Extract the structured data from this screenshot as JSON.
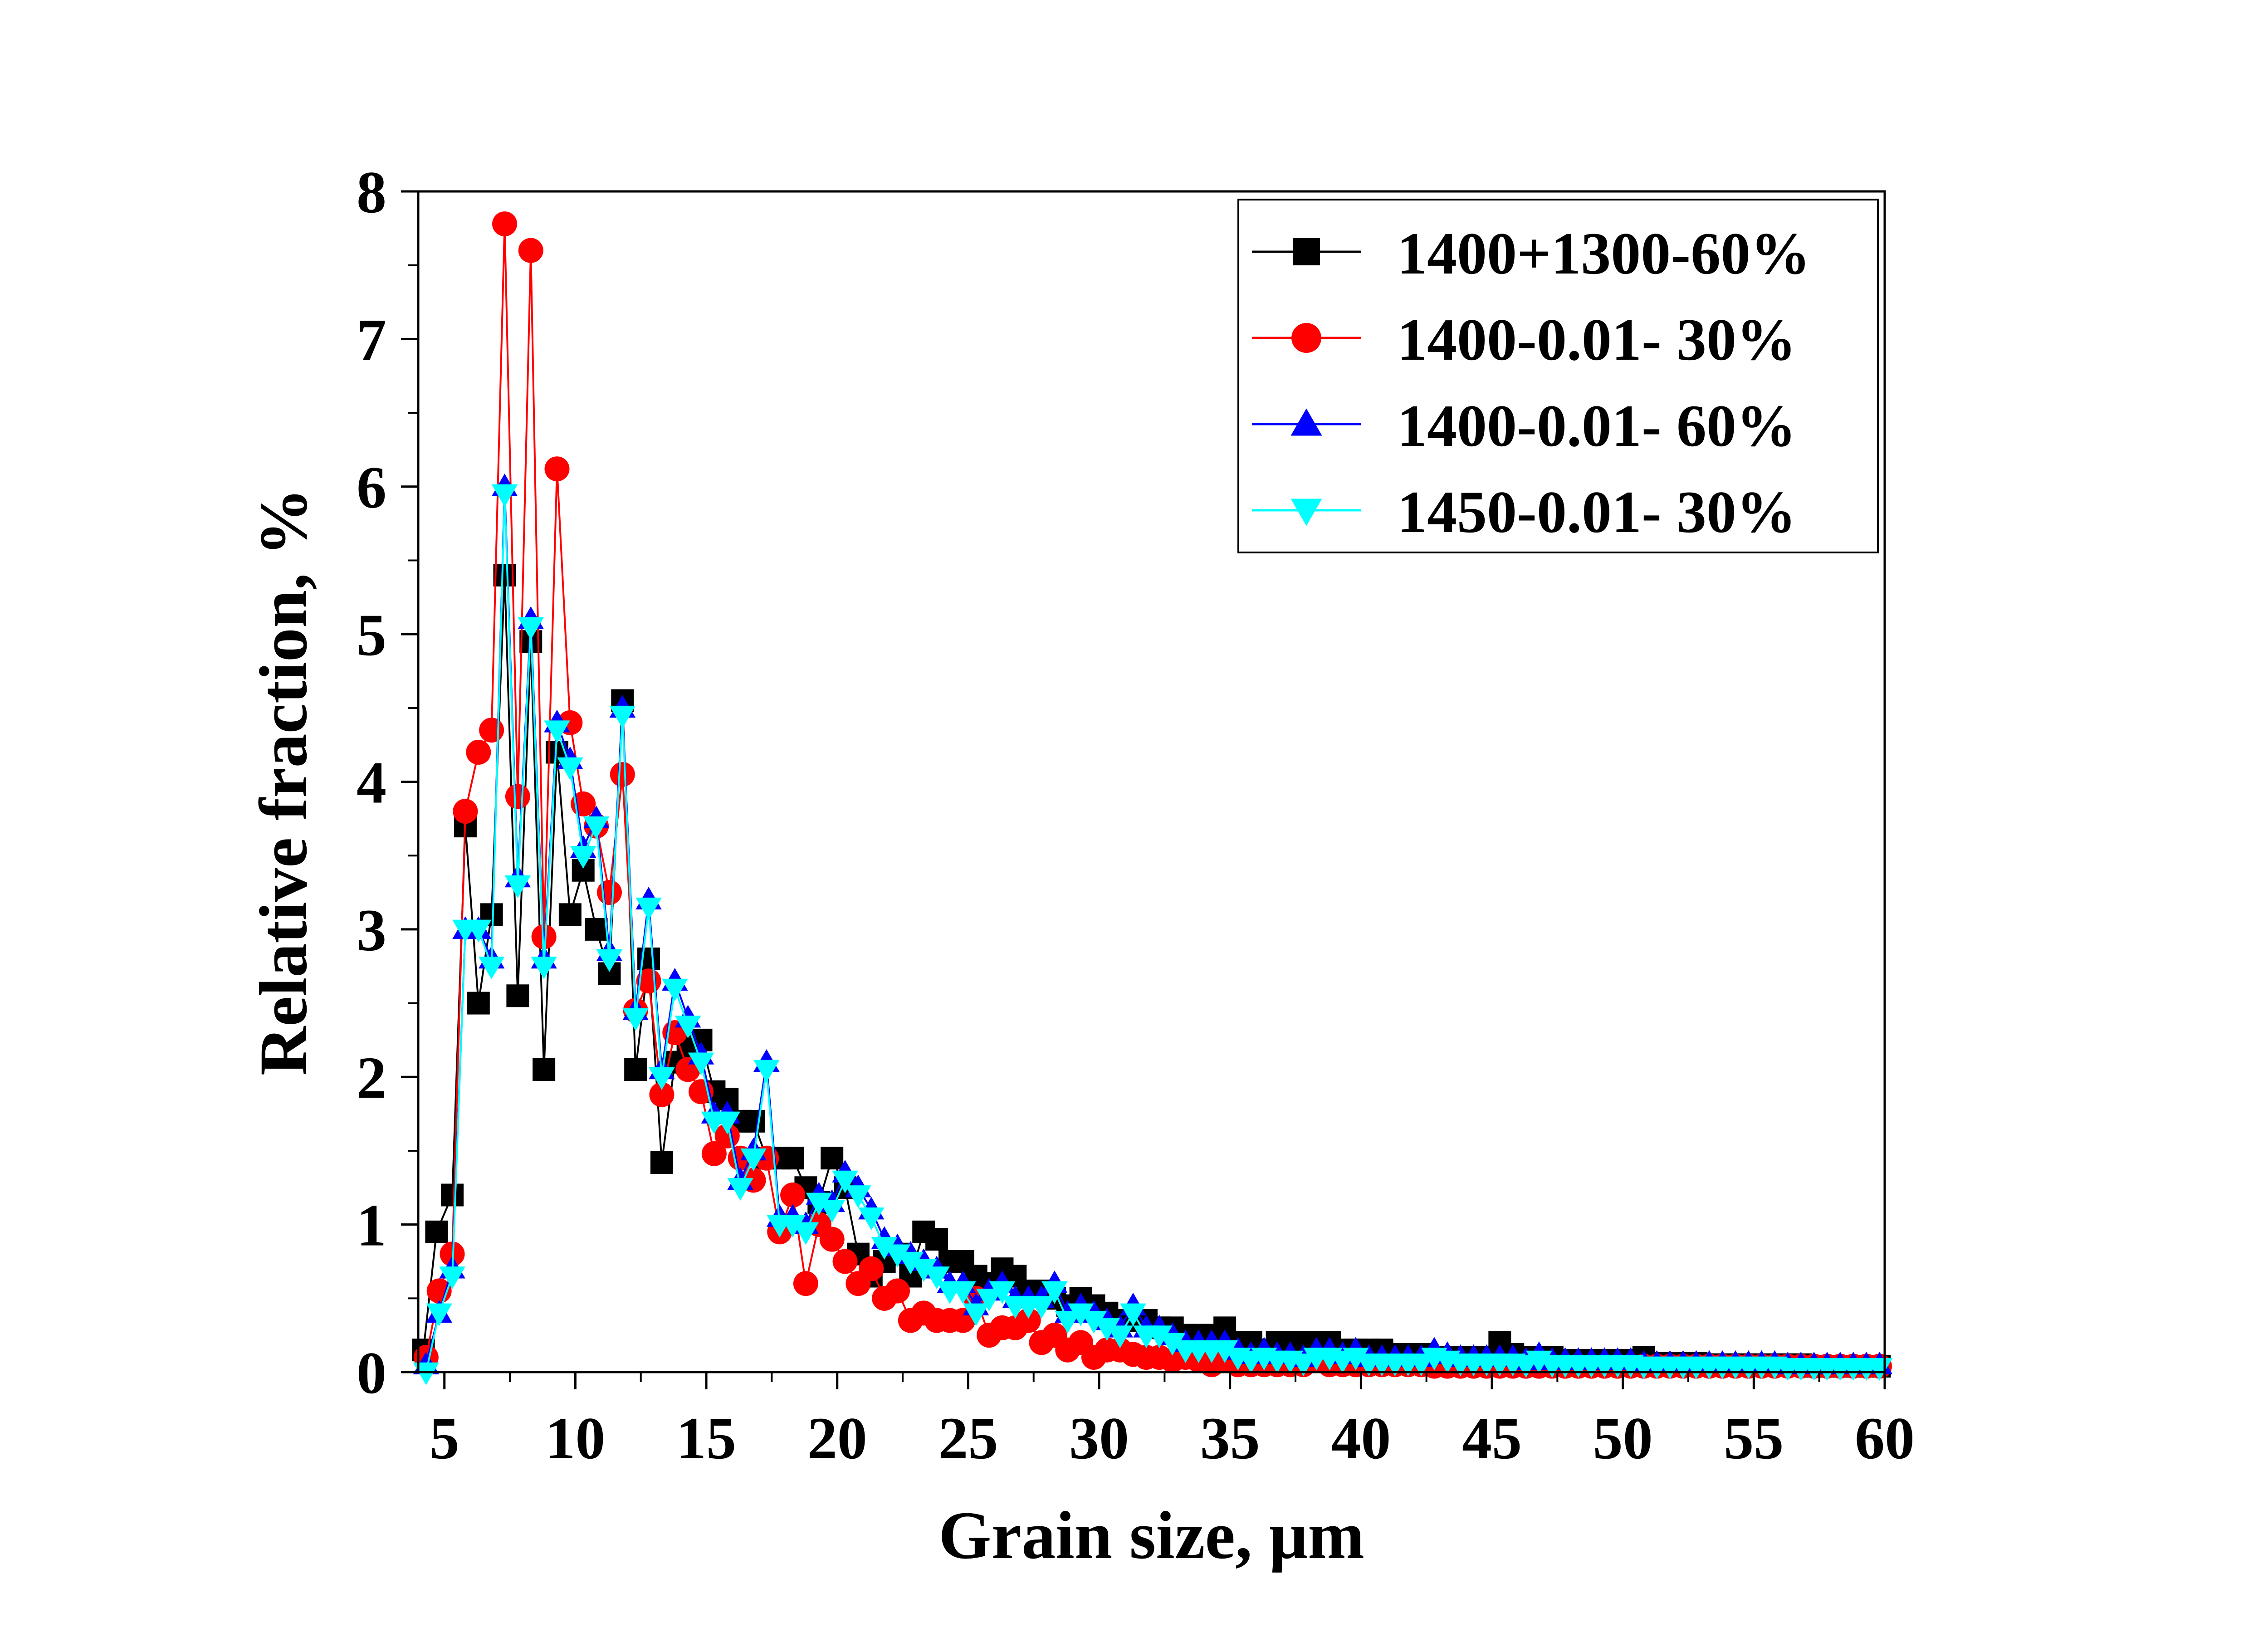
{
  "chart_data": {
    "type": "line",
    "xlabel": "Grain size, μm",
    "ylabel": "Relative fraction, %",
    "xlim": [
      4,
      60
    ],
    "ylim": [
      0,
      8
    ],
    "x_ticks": [
      5,
      10,
      15,
      20,
      25,
      30,
      35,
      40,
      45,
      50,
      55,
      60
    ],
    "x_tick_labels": [
      "5",
      "10",
      "15",
      "20",
      "25",
      "30",
      "35",
      "40",
      "45",
      "50",
      "55",
      "60"
    ],
    "y_ticks": [
      0,
      1,
      2,
      3,
      4,
      5,
      6,
      7,
      8
    ],
    "y_tick_labels": [
      "0",
      "1",
      "2",
      "3",
      "4",
      "5",
      "6",
      "7",
      "8"
    ],
    "grid": false,
    "legend_position": "top-right",
    "series": [
      {
        "name": "1400+1300-60%",
        "color": "#000000",
        "marker": "square",
        "x": [
          4.2,
          4.7,
          5.3,
          5.8,
          6.3,
          6.8,
          7.3,
          7.8,
          8.3,
          8.8,
          9.3,
          9.8,
          10.3,
          10.8,
          11.3,
          11.8,
          12.3,
          12.8,
          13.3,
          13.8,
          14.3,
          14.8,
          15.3,
          15.8,
          16.3,
          16.8,
          17.3,
          17.8,
          18.3,
          18.8,
          19.3,
          19.8,
          20.3,
          20.8,
          21.3,
          21.8,
          22.3,
          22.8,
          23.3,
          23.8,
          24.3,
          24.8,
          25.3,
          25.8,
          26.3,
          26.8,
          27.3,
          27.8,
          28.3,
          28.8,
          29.3,
          29.8,
          30.3,
          30.8,
          31.3,
          31.8,
          32.3,
          32.8,
          33.3,
          33.8,
          34.3,
          34.8,
          35.3,
          35.8,
          36.3,
          36.8,
          37.3,
          37.8,
          38.3,
          38.8,
          39.3,
          39.8,
          40.3,
          40.8,
          41.3,
          41.8,
          42.3,
          42.8,
          43.3,
          43.8,
          44.3,
          44.8,
          45.3,
          45.8,
          46.3,
          46.8,
          47.3,
          47.8,
          48.3,
          48.8,
          49.3,
          49.8,
          50.3,
          50.8,
          51.3,
          51.8,
          52.3,
          52.8,
          53.3,
          53.8,
          54.3,
          54.8,
          55.3,
          55.8,
          56.3,
          56.8,
          57.3,
          57.8,
          58.3,
          58.8,
          59.3,
          59.8
        ],
        "y": [
          0.15,
          0.95,
          1.2,
          3.7,
          2.5,
          3.1,
          5.4,
          2.55,
          4.95,
          2.05,
          4.2,
          3.1,
          3.4,
          3.0,
          2.7,
          4.55,
          2.05,
          2.8,
          1.42,
          2.1,
          2.2,
          2.25,
          1.9,
          1.85,
          1.7,
          1.7,
          1.45,
          1.45,
          1.45,
          1.25,
          1.15,
          1.45,
          1.25,
          0.8,
          0.65,
          0.75,
          0.8,
          0.65,
          0.95,
          0.9,
          0.75,
          0.75,
          0.65,
          0.6,
          0.7,
          0.65,
          0.55,
          0.55,
          0.5,
          0.45,
          0.5,
          0.45,
          0.4,
          0.35,
          0.35,
          0.35,
          0.3,
          0.3,
          0.25,
          0.25,
          0.25,
          0.3,
          0.2,
          0.2,
          0.15,
          0.2,
          0.2,
          0.2,
          0.2,
          0.2,
          0.15,
          0.15,
          0.15,
          0.15,
          0.12,
          0.12,
          0.12,
          0.1,
          0.1,
          0.1,
          0.1,
          0.1,
          0.2,
          0.12,
          0.1,
          0.1,
          0.1,
          0.08,
          0.08,
          0.08,
          0.08,
          0.08,
          0.08,
          0.1,
          0.06,
          0.06,
          0.06,
          0.06,
          0.05,
          0.05,
          0.05,
          0.05,
          0.05,
          0.05,
          0.05,
          0.05,
          0.04,
          0.04,
          0.04,
          0.04,
          0.04,
          0.04
        ]
      },
      {
        "name": "1400-0.01- 30%",
        "color": "#ff0000",
        "marker": "circle",
        "x": [
          4.3,
          4.8,
          5.3,
          5.8,
          6.3,
          6.8,
          7.3,
          7.8,
          8.3,
          8.8,
          9.3,
          9.8,
          10.3,
          10.8,
          11.3,
          11.8,
          12.3,
          12.8,
          13.3,
          13.8,
          14.3,
          14.8,
          15.3,
          15.8,
          16.3,
          16.8,
          17.3,
          17.8,
          18.3,
          18.8,
          19.3,
          19.8,
          20.3,
          20.8,
          21.3,
          21.8,
          22.3,
          22.8,
          23.3,
          23.8,
          24.3,
          24.8,
          25.3,
          25.8,
          26.3,
          26.8,
          27.3,
          27.8,
          28.3,
          28.8,
          29.3,
          29.8,
          30.3,
          30.8,
          31.3,
          31.8,
          32.3,
          32.8,
          33.3,
          33.8,
          34.3,
          34.8,
          35.3,
          35.8,
          36.3,
          36.8,
          37.3,
          37.8,
          38.3,
          38.8,
          39.3,
          39.8,
          40.3,
          40.8,
          41.3,
          41.8,
          42.3,
          42.8,
          43.3,
          43.8,
          44.3,
          44.8,
          45.3,
          45.8,
          46.3,
          46.8,
          47.3,
          47.8,
          48.3,
          48.8,
          49.3,
          49.8,
          50.3,
          50.8,
          51.3,
          51.8,
          52.3,
          52.8,
          53.3,
          53.8,
          54.3,
          54.8,
          55.3,
          55.8,
          56.3,
          56.8,
          57.3,
          57.8,
          58.3,
          58.8,
          59.3,
          59.8
        ],
        "y": [
          0.1,
          0.55,
          0.8,
          3.8,
          4.2,
          4.35,
          7.78,
          3.9,
          7.6,
          2.95,
          6.12,
          4.4,
          3.85,
          3.7,
          3.25,
          4.05,
          2.45,
          2.65,
          1.88,
          2.3,
          2.05,
          1.9,
          1.48,
          1.6,
          1.45,
          1.3,
          1.45,
          0.95,
          1.2,
          0.6,
          1.0,
          0.9,
          0.75,
          0.6,
          0.7,
          0.5,
          0.55,
          0.35,
          0.4,
          0.35,
          0.35,
          0.35,
          0.5,
          0.25,
          0.3,
          0.3,
          0.35,
          0.2,
          0.25,
          0.15,
          0.2,
          0.1,
          0.15,
          0.15,
          0.12,
          0.1,
          0.1,
          0.08,
          0.1,
          0.08,
          0.05,
          0.08,
          0.05,
          0.05,
          0.05,
          0.05,
          0.05,
          0.05,
          0.08,
          0.05,
          0.05,
          0.05,
          0.05,
          0.05,
          0.05,
          0.05,
          0.05,
          0.04,
          0.04,
          0.04,
          0.04,
          0.04,
          0.04,
          0.04,
          0.04,
          0.04,
          0.04,
          0.04,
          0.04,
          0.04,
          0.04,
          0.04,
          0.04,
          0.04,
          0.04,
          0.04,
          0.04,
          0.04,
          0.04,
          0.04,
          0.04,
          0.04,
          0.04,
          0.04,
          0.04,
          0.04,
          0.04,
          0.04,
          0.04,
          0.04,
          0.04,
          0.04
        ]
      },
      {
        "name": "1400-0.01- 60%",
        "color": "#0000ff",
        "marker": "triangle-up",
        "x": [
          4.3,
          4.8,
          5.3,
          5.8,
          6.3,
          6.8,
          7.3,
          7.8,
          8.3,
          8.8,
          9.3,
          9.8,
          10.3,
          10.8,
          11.3,
          11.8,
          12.3,
          12.8,
          13.3,
          13.8,
          14.3,
          14.8,
          15.3,
          15.8,
          16.3,
          16.8,
          17.3,
          17.8,
          18.3,
          18.8,
          19.3,
          19.8,
          20.3,
          20.8,
          21.3,
          21.8,
          22.3,
          22.8,
          23.3,
          23.8,
          24.3,
          24.8,
          25.3,
          25.8,
          26.3,
          26.8,
          27.3,
          27.8,
          28.3,
          28.8,
          29.3,
          29.8,
          30.3,
          30.8,
          31.3,
          31.8,
          32.3,
          32.8,
          33.3,
          33.8,
          34.3,
          34.8,
          35.3,
          35.8,
          36.3,
          36.8,
          37.3,
          37.8,
          38.3,
          38.8,
          39.3,
          39.8,
          40.3,
          40.8,
          41.3,
          41.8,
          42.3,
          42.8,
          43.3,
          43.8,
          44.3,
          44.8,
          45.3,
          45.8,
          46.3,
          46.8,
          47.3,
          47.8,
          48.3,
          48.8,
          49.3,
          49.8,
          50.3,
          50.8,
          51.3,
          51.8,
          52.3,
          52.8,
          53.3,
          53.8,
          54.3,
          54.8,
          55.3,
          55.8,
          56.3,
          56.8,
          57.3,
          57.8,
          58.3,
          58.8,
          59.3,
          59.8
        ],
        "y": [
          0.05,
          0.4,
          0.7,
          3.0,
          3.0,
          2.8,
          6.0,
          3.35,
          5.1,
          2.8,
          4.4,
          4.15,
          3.55,
          3.75,
          2.85,
          4.5,
          2.45,
          3.2,
          2.05,
          2.65,
          2.4,
          2.15,
          1.75,
          1.75,
          1.3,
          1.5,
          2.1,
          1.05,
          1.05,
          1.0,
          1.2,
          1.15,
          1.35,
          1.25,
          1.1,
          0.9,
          0.85,
          0.8,
          0.75,
          0.7,
          0.6,
          0.6,
          0.45,
          0.55,
          0.6,
          0.5,
          0.5,
          0.5,
          0.6,
          0.4,
          0.45,
          0.4,
          0.35,
          0.3,
          0.45,
          0.3,
          0.3,
          0.25,
          0.2,
          0.2,
          0.2,
          0.2,
          0.15,
          0.12,
          0.15,
          0.12,
          0.12,
          0.1,
          0.15,
          0.15,
          0.12,
          0.15,
          0.1,
          0.1,
          0.1,
          0.1,
          0.1,
          0.15,
          0.12,
          0.1,
          0.1,
          0.1,
          0.1,
          0.1,
          0.08,
          0.12,
          0.08,
          0.08,
          0.08,
          0.08,
          0.08,
          0.08,
          0.08,
          0.06,
          0.06,
          0.06,
          0.06,
          0.06,
          0.06,
          0.06,
          0.06,
          0.06,
          0.06,
          0.06,
          0.05,
          0.05,
          0.05,
          0.05,
          0.05,
          0.05,
          0.05,
          0.05
        ]
      },
      {
        "name": "1450-0.01- 30%",
        "color": "#00ffff",
        "marker": "triangle-down",
        "x": [
          4.3,
          4.8,
          5.3,
          5.8,
          6.3,
          6.8,
          7.3,
          7.8,
          8.3,
          8.8,
          9.3,
          9.8,
          10.3,
          10.8,
          11.3,
          11.8,
          12.3,
          12.8,
          13.3,
          13.8,
          14.3,
          14.8,
          15.3,
          15.8,
          16.3,
          16.8,
          17.3,
          17.8,
          18.3,
          18.8,
          19.3,
          19.8,
          20.3,
          20.8,
          21.3,
          21.8,
          22.3,
          22.8,
          23.3,
          23.8,
          24.3,
          24.8,
          25.3,
          25.8,
          26.3,
          26.8,
          27.3,
          27.8,
          28.3,
          28.8,
          29.3,
          29.8,
          30.3,
          30.8,
          31.3,
          31.8,
          32.3,
          32.8,
          33.3,
          33.8,
          34.3,
          34.8,
          35.3,
          35.8,
          36.3,
          36.8,
          37.3,
          37.8,
          38.3,
          38.8,
          39.3,
          39.8,
          40.3,
          40.8,
          41.3,
          41.8,
          42.3,
          42.8,
          43.3,
          43.8,
          44.3,
          44.8,
          45.3,
          45.8,
          46.3,
          46.8,
          47.3,
          47.8,
          48.3,
          48.8,
          49.3,
          49.8,
          50.3,
          50.8,
          51.3,
          51.8,
          52.3,
          52.8,
          53.3,
          53.8,
          54.3,
          54.8,
          55.3,
          55.8,
          56.3,
          56.8,
          57.3,
          57.8,
          58.3,
          58.8,
          59.3,
          59.8
        ],
        "y": [
          0.0,
          0.4,
          0.65,
          3.0,
          3.0,
          2.75,
          5.95,
          3.3,
          5.05,
          2.75,
          4.35,
          4.1,
          3.5,
          3.7,
          2.8,
          4.45,
          2.4,
          3.15,
          2.0,
          2.6,
          2.35,
          2.1,
          1.7,
          1.7,
          1.25,
          1.45,
          2.05,
          1.0,
          1.0,
          0.95,
          1.15,
          1.1,
          1.3,
          1.2,
          1.05,
          0.85,
          0.8,
          0.75,
          0.7,
          0.65,
          0.55,
          0.55,
          0.4,
          0.5,
          0.55,
          0.45,
          0.45,
          0.45,
          0.55,
          0.35,
          0.4,
          0.35,
          0.3,
          0.25,
          0.4,
          0.25,
          0.25,
          0.2,
          0.15,
          0.15,
          0.15,
          0.15,
          0.1,
          0.08,
          0.1,
          0.08,
          0.08,
          0.06,
          0.1,
          0.1,
          0.08,
          0.1,
          0.06,
          0.06,
          0.06,
          0.06,
          0.06,
          0.1,
          0.08,
          0.06,
          0.06,
          0.06,
          0.06,
          0.06,
          0.05,
          0.08,
          0.05,
          0.05,
          0.05,
          0.05,
          0.05,
          0.05,
          0.05,
          0.04,
          0.04,
          0.04,
          0.04,
          0.04,
          0.04,
          0.04,
          0.04,
          0.04,
          0.04,
          0.04,
          0.03,
          0.03,
          0.03,
          0.03,
          0.03,
          0.03,
          0.03,
          0.03
        ]
      }
    ]
  }
}
